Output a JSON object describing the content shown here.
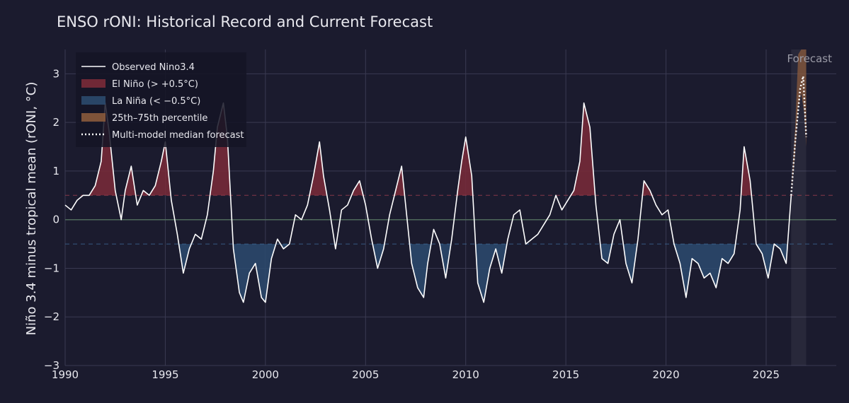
{
  "chart_data": {
    "type": "line",
    "title": "ENSO rONI: Historical Record and Current Forecast",
    "xlabel": "",
    "ylabel": "Niño 3.4 minus tropical mean (rONI, °C)",
    "xlim": [
      1990,
      2028.5
    ],
    "ylim": [
      -3,
      3.5
    ],
    "x_ticks": [
      1990,
      1995,
      2000,
      2005,
      2010,
      2015,
      2020,
      2025
    ],
    "x_tick_labels": [
      "1990",
      "1995",
      "2000",
      "2005",
      "2010",
      "2015",
      "2020",
      "2025"
    ],
    "y_ticks": [
      -3,
      -2,
      -1,
      0,
      1,
      2,
      3
    ],
    "y_tick_labels": [
      "−3",
      "−2",
      "−1",
      "0",
      "1",
      "2",
      "3"
    ],
    "thresholds": {
      "el_nino": 0.5,
      "la_nina": -0.5
    },
    "grid": true,
    "legend_position": "top-left",
    "forecast_region": {
      "x": [
        2026.25,
        2027.0
      ],
      "label": "Forecast"
    },
    "colors": {
      "background": "#1b1b2e",
      "observed": "#ffffff",
      "el_nino": "#7a2a38",
      "la_nina": "#2b4a6e",
      "percentile": "#8a5a3c",
      "forecast": "#ffffff",
      "grid": "#3a3a52",
      "zero_line": "#4f6a5c"
    },
    "legend": [
      {
        "label": "Observed Nino3.4",
        "style": "line",
        "color": "#ffffff"
      },
      {
        "label": "El Niño (> +0.5°C)",
        "style": "fill",
        "color": "#7a2a38"
      },
      {
        "label": "La Niña (< −0.5°C)",
        "style": "fill",
        "color": "#2b4a6e"
      },
      {
        "label": "25th–75th percentile",
        "style": "fill",
        "color": "#8a5a3c"
      },
      {
        "label": "Multi-model median forecast",
        "style": "dotted",
        "color": "#ffffff"
      }
    ],
    "series": [
      {
        "name": "Observed Nino3.4",
        "x": [
          1990.0,
          1990.3,
          1990.6,
          1990.9,
          1991.2,
          1991.5,
          1991.8,
          1992.0,
          1992.2,
          1992.5,
          1992.8,
          1993.0,
          1993.3,
          1993.6,
          1993.9,
          1994.2,
          1994.5,
          1994.8,
          1995.0,
          1995.3,
          1995.6,
          1995.9,
          1996.2,
          1996.5,
          1996.8,
          1997.1,
          1997.4,
          1997.6,
          1997.9,
          1998.1,
          1998.4,
          1998.7,
          1998.9,
          1999.2,
          1999.5,
          1999.8,
          2000.0,
          2000.3,
          2000.6,
          2000.9,
          2001.2,
          2001.5,
          2001.8,
          2002.1,
          2002.4,
          2002.7,
          2002.9,
          2003.2,
          2003.5,
          2003.8,
          2004.1,
          2004.4,
          2004.7,
          2005.0,
          2005.3,
          2005.6,
          2005.9,
          2006.2,
          2006.5,
          2006.8,
          2007.0,
          2007.3,
          2007.6,
          2007.9,
          2008.1,
          2008.4,
          2008.7,
          2009.0,
          2009.3,
          2009.6,
          2009.8,
          2010.0,
          2010.3,
          2010.6,
          2010.9,
          2011.2,
          2011.5,
          2011.8,
          2012.1,
          2012.4,
          2012.7,
          2013.0,
          2013.3,
          2013.6,
          2013.9,
          2014.2,
          2014.5,
          2014.8,
          2015.1,
          2015.4,
          2015.7,
          2015.9,
          2016.2,
          2016.5,
          2016.8,
          2017.1,
          2017.4,
          2017.7,
          2018.0,
          2018.3,
          2018.6,
          2018.9,
          2019.2,
          2019.5,
          2019.8,
          2020.1,
          2020.4,
          2020.7,
          2021.0,
          2021.3,
          2021.6,
          2021.9,
          2022.2,
          2022.5,
          2022.8,
          2023.1,
          2023.4,
          2023.7,
          2023.9,
          2024.2,
          2024.5,
          2024.8,
          2025.1,
          2025.4,
          2025.7,
          2026.0,
          2026.25
        ],
        "values": [
          0.3,
          0.2,
          0.4,
          0.5,
          0.5,
          0.7,
          1.2,
          2.4,
          1.8,
          0.6,
          0.0,
          0.6,
          1.1,
          0.3,
          0.6,
          0.5,
          0.7,
          1.2,
          1.6,
          0.4,
          -0.3,
          -1.1,
          -0.6,
          -0.3,
          -0.4,
          0.1,
          1.0,
          1.9,
          2.4,
          1.7,
          -0.6,
          -1.5,
          -1.7,
          -1.1,
          -0.9,
          -1.6,
          -1.7,
          -0.8,
          -0.4,
          -0.6,
          -0.5,
          0.1,
          0.0,
          0.3,
          0.9,
          1.6,
          0.9,
          0.2,
          -0.6,
          0.2,
          0.3,
          0.6,
          0.8,
          0.3,
          -0.4,
          -1.0,
          -0.6,
          0.1,
          0.6,
          1.1,
          0.3,
          -0.9,
          -1.4,
          -1.6,
          -0.9,
          -0.2,
          -0.5,
          -1.2,
          -0.4,
          0.6,
          1.2,
          1.7,
          0.9,
          -1.3,
          -1.7,
          -1.0,
          -0.6,
          -1.1,
          -0.4,
          0.1,
          0.2,
          -0.5,
          -0.4,
          -0.3,
          -0.1,
          0.1,
          0.5,
          0.2,
          0.4,
          0.6,
          1.2,
          2.4,
          1.9,
          0.3,
          -0.8,
          -0.9,
          -0.3,
          0.0,
          -0.9,
          -1.3,
          -0.4,
          0.8,
          0.6,
          0.3,
          0.1,
          0.2,
          -0.5,
          -0.9,
          -1.6,
          -0.8,
          -0.9,
          -1.2,
          -1.1,
          -1.4,
          -0.8,
          -0.9,
          -0.7,
          0.2,
          1.5,
          0.8,
          -0.5,
          -0.7,
          -1.2,
          -0.5,
          -0.6,
          -0.9,
          0.5
        ]
      },
      {
        "name": "Multi-model median forecast",
        "x": [
          2026.25,
          2026.45,
          2026.7,
          2026.85,
          2027.0
        ],
        "values": [
          0.5,
          1.6,
          2.7,
          2.95,
          1.7
        ]
      }
    ],
    "percentile_band": {
      "x": [
        2026.25,
        2026.45,
        2026.6,
        2026.75,
        2026.9,
        2027.0
      ],
      "lower": [
        0.5,
        1.4,
        2.3,
        2.6,
        2.2,
        1.5
      ],
      "upper": [
        0.5,
        1.9,
        3.4,
        3.5,
        3.5,
        3.5
      ]
    }
  }
}
